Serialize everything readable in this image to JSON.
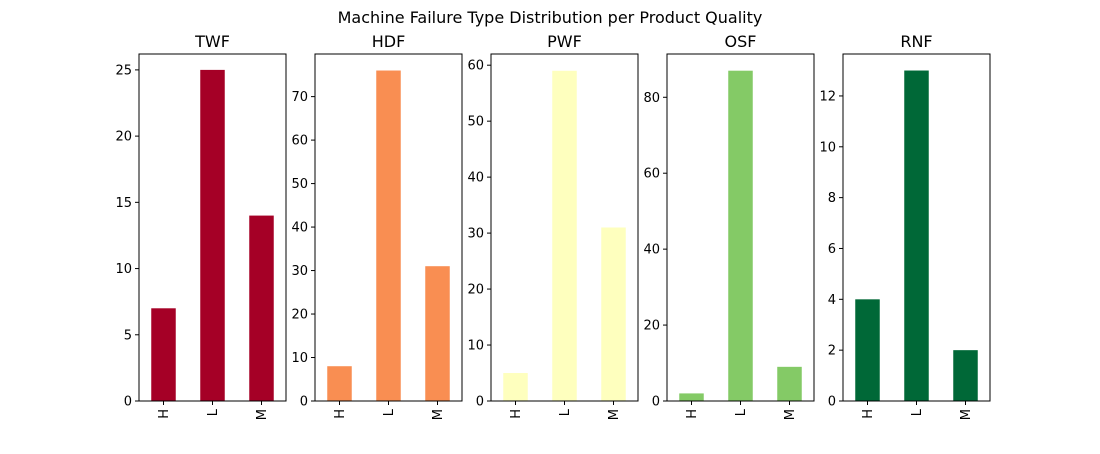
{
  "figure": {
    "title": "Machine Failure Type Distribution per Product Quality"
  },
  "chart_data": [
    {
      "type": "bar",
      "title": "TWF",
      "color": "#a50026",
      "categories": [
        "H",
        "L",
        "M"
      ],
      "values": [
        7,
        25,
        14
      ],
      "ylim": [
        0,
        26.2
      ],
      "yticks": [
        0,
        5,
        10,
        15,
        20,
        25
      ]
    },
    {
      "type": "bar",
      "title": "HDF",
      "color": "#f98e52",
      "categories": [
        "H",
        "L",
        "M"
      ],
      "values": [
        8,
        76,
        31
      ],
      "ylim": [
        0,
        79.8
      ],
      "yticks": [
        0,
        10,
        20,
        30,
        40,
        50,
        60,
        70
      ]
    },
    {
      "type": "bar",
      "title": "PWF",
      "color": "#feffbe",
      "categories": [
        "H",
        "L",
        "M"
      ],
      "values": [
        5,
        59,
        31
      ],
      "ylim": [
        0,
        62
      ],
      "yticks": [
        0,
        10,
        20,
        30,
        40,
        50,
        60
      ]
    },
    {
      "type": "bar",
      "title": "OSF",
      "color": "#84ca66",
      "categories": [
        "H",
        "L",
        "M"
      ],
      "values": [
        2,
        87,
        9
      ],
      "ylim": [
        0,
        91.4
      ],
      "yticks": [
        0,
        20,
        40,
        60,
        80
      ]
    },
    {
      "type": "bar",
      "title": "RNF",
      "color": "#006837",
      "categories": [
        "H",
        "L",
        "M"
      ],
      "values": [
        4,
        13,
        2
      ],
      "ylim": [
        0,
        13.65
      ],
      "yticks": [
        0,
        2,
        4,
        6,
        8,
        10,
        12
      ]
    }
  ]
}
